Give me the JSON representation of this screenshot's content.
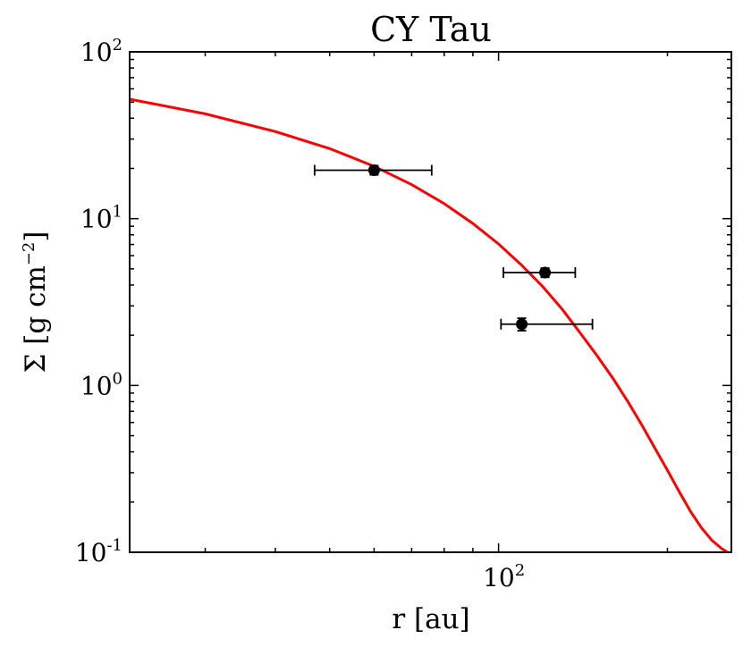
{
  "chart_data": {
    "type": "scatter",
    "title": "CY Tau",
    "xlabel": "r [au]",
    "ylabel": "Σ [g cm",
    "ylabel_exponent": "−2",
    "ylabel_close": "]",
    "x_scale": "log",
    "y_scale": "log",
    "xlim": [
      22,
      260
    ],
    "ylim": [
      0.1,
      100
    ],
    "x_ticks": [
      {
        "value": 100,
        "base": "10",
        "exponent": "2"
      }
    ],
    "y_ticks": [
      {
        "value": 0.1,
        "base": "10",
        "exponent": "-1"
      },
      {
        "value": 1,
        "base": "10",
        "exponent": "0"
      },
      {
        "value": 10,
        "base": "10",
        "exponent": "1"
      },
      {
        "value": 100,
        "base": "10",
        "exponent": "2"
      }
    ],
    "grid": false,
    "points": [
      {
        "x": 60,
        "y": 19.5,
        "xerr_low": 47,
        "xerr_high": 76,
        "yerr_low": 18.3,
        "yerr_high": 20.8
      },
      {
        "x": 121,
        "y": 4.75,
        "xerr_low": 102,
        "xerr_high": 137,
        "yerr_low": 4.45,
        "yerr_high": 5.05
      },
      {
        "x": 110,
        "y": 2.33,
        "xerr_low": 101,
        "xerr_high": 147,
        "yerr_low": 2.13,
        "yerr_high": 2.53
      }
    ],
    "model_curve": {
      "x": [
        22,
        30,
        40,
        50,
        60,
        70,
        80,
        90,
        100,
        110,
        120,
        130,
        140,
        150,
        160,
        170,
        180,
        190,
        200,
        210,
        220,
        230,
        240,
        250,
        256
      ],
      "y": [
        52.0,
        42.5,
        33.3,
        26.3,
        20.6,
        16.0,
        12.3,
        9.35,
        7.05,
        5.25,
        3.9,
        2.85,
        2.05,
        1.5,
        1.1,
        0.8,
        0.58,
        0.42,
        0.31,
        0.23,
        0.175,
        0.14,
        0.118,
        0.105,
        0.1
      ],
      "color": "#ff0000"
    },
    "marker_color": "#000000"
  }
}
